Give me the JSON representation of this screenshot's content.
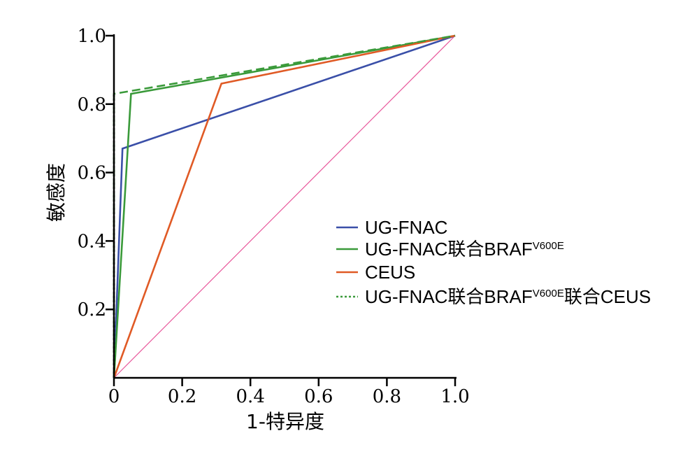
{
  "chart_data": {
    "type": "line",
    "xlabel": "1-特异度",
    "ylabel": "敏感度",
    "xlim": [
      0,
      1
    ],
    "ylim": [
      0,
      1
    ],
    "x_ticks": [
      0,
      0.2,
      0.4,
      0.6,
      0.8,
      1.0
    ],
    "x_tick_labels": [
      "0",
      "0.2",
      "0.4",
      "0.6",
      "0.8",
      "1.0"
    ],
    "y_ticks": [
      0.2,
      0.4,
      0.6,
      0.8,
      1.0
    ],
    "y_tick_labels": [
      "0.2",
      "0.4",
      "0.6",
      "0.8",
      "1.0"
    ],
    "grid": false,
    "legend_position": "right",
    "series": [
      {
        "label_main": "UG-FNAC",
        "label_sup": "",
        "label_tail": "",
        "color": "#3a4fa8",
        "dash": "solid",
        "points": [
          [
            0,
            0
          ],
          [
            0.025,
            0.67
          ],
          [
            1,
            1
          ]
        ]
      },
      {
        "label_main": "UG-FNAC联合BRAF",
        "label_sup": "V600E",
        "label_tail": "",
        "color": "#3a9a3a",
        "dash": "solid",
        "points": [
          [
            0,
            0
          ],
          [
            0.05,
            0.83
          ],
          [
            1,
            1
          ]
        ]
      },
      {
        "label_main": "CEUS",
        "label_sup": "",
        "label_tail": "",
        "color": "#e05a25",
        "dash": "solid",
        "points": [
          [
            0,
            0
          ],
          [
            0.315,
            0.86
          ],
          [
            1,
            1
          ]
        ]
      },
      {
        "label_main": "UG-FNAC联合BRAF",
        "label_sup": "V600E",
        "label_tail": "联合CEUS",
        "color": "#3a9a3a",
        "dash": "dashed",
        "points": [
          [
            0,
            0
          ],
          [
            0,
            0.83
          ],
          [
            1,
            1
          ]
        ]
      }
    ],
    "reference_line": {
      "color": "#e8559a",
      "points": [
        [
          0,
          0
        ],
        [
          1,
          1
        ]
      ]
    }
  }
}
